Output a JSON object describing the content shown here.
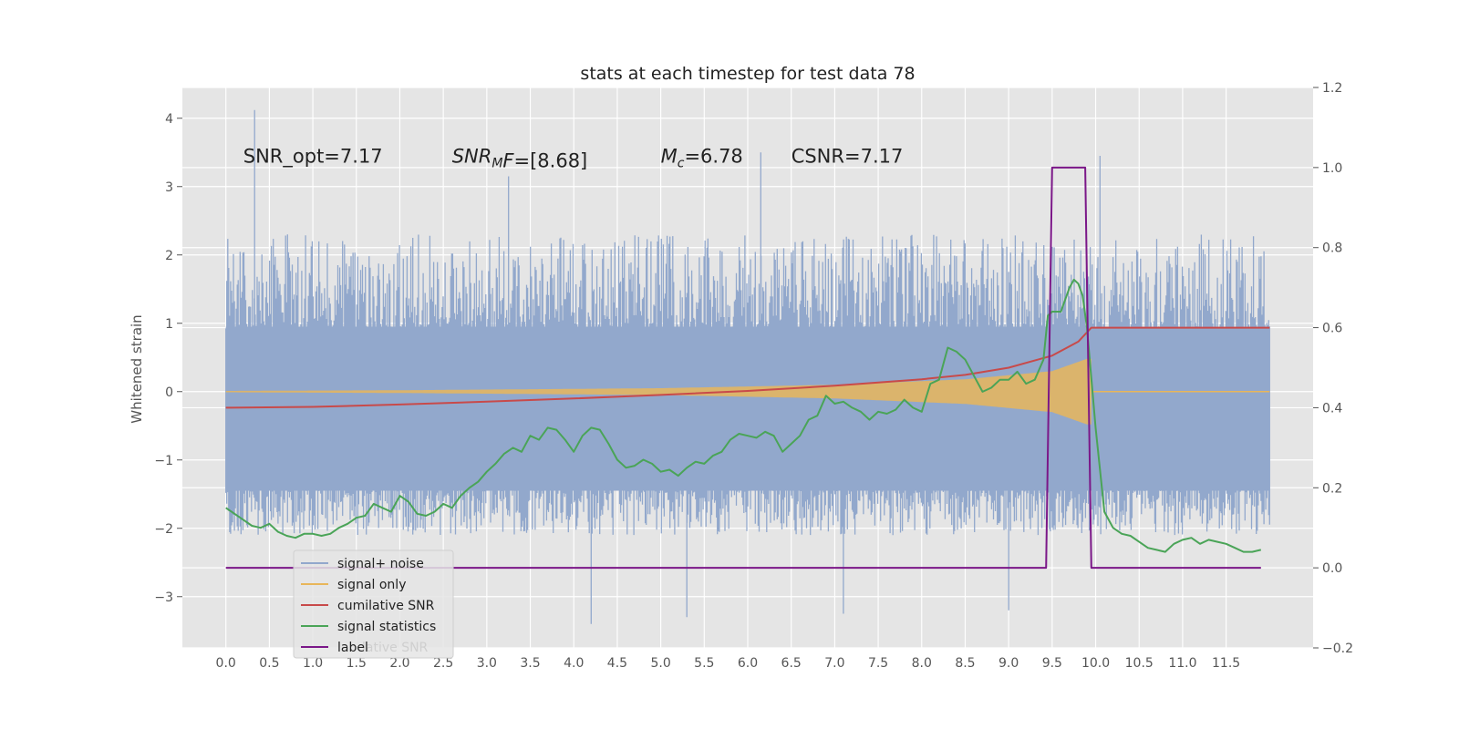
{
  "chart_data": {
    "type": "line",
    "title": "stats at each timestep for test data 78",
    "xlabel": "",
    "ylabel": "Whitened strain",
    "ylabel_right": "",
    "xlim": [
      -0.5,
      12.5
    ],
    "ylim": [
      -3.75,
      4.45
    ],
    "ylim_right": [
      -0.2,
      1.2
    ],
    "grid": true,
    "x_ticks": [
      "0.0",
      "0.5",
      "1.0",
      "1.5",
      "2.0",
      "2.5",
      "3.0",
      "3.5",
      "4.0",
      "4.5",
      "5.0",
      "5.5",
      "6.0",
      "6.5",
      "7.0",
      "7.5",
      "8.0",
      "8.5",
      "9.0",
      "9.5",
      "10.0",
      "10.5",
      "11.0",
      "11.5"
    ],
    "y_ticks": [
      4,
      3,
      2,
      1,
      0,
      -1,
      -2,
      -3
    ],
    "y_tick_labels": [
      "4",
      "3",
      "2",
      "1",
      "0",
      "−1",
      "−2",
      "−3"
    ],
    "y_ticks_right": [
      1.2,
      1.0,
      0.8,
      0.6,
      0.4,
      0.2,
      0.0,
      -0.2
    ],
    "y_tick_labels_right": [
      "1.2",
      "1.0",
      "0.8",
      "0.6",
      "0.4",
      "0.2",
      "0.0",
      "−0.2"
    ],
    "legend_placement": "lower-left",
    "annotations": [
      {
        "text": "SNR_opt=7.17",
        "x": 0.2,
        "y": 3.35
      },
      {
        "text": "SNR",
        "sub": "M",
        "tail": "F=[8.68]",
        "italic": true,
        "x": 2.6,
        "y": 3.35
      },
      {
        "text": "M",
        "sub": "c",
        "tail": "=6.78",
        "italic": true,
        "x": 5.0,
        "y": 3.35
      },
      {
        "text": "CSNR=7.17",
        "x": 6.5,
        "y": 3.35
      }
    ],
    "legend_ghost": "lative SNR",
    "series": [
      {
        "name": "signal+ noise",
        "axis": "left",
        "color": "#92a8cc",
        "style": "noise",
        "x_range": [
          0.0,
          12.0
        ],
        "envelope_upper": 2.3,
        "envelope_lower": -2.1,
        "band": [
          -1.45,
          0.95
        ],
        "peaks": [
          {
            "x": 0.33,
            "y": 4.12
          },
          {
            "x": 6.15,
            "y": 3.5
          },
          {
            "x": 10.05,
            "y": 3.45
          },
          {
            "x": 3.25,
            "y": 3.15
          },
          {
            "x": 4.2,
            "y": -3.4
          },
          {
            "x": 5.3,
            "y": -3.3
          },
          {
            "x": 7.1,
            "y": -3.25
          },
          {
            "x": 9.0,
            "y": -3.2
          }
        ]
      },
      {
        "name": "signal only",
        "axis": "left",
        "color": "#e8b65a",
        "style": "chirp",
        "x_range": [
          0.0,
          9.95
        ],
        "amplitude": [
          [
            0.0,
            0.01
          ],
          [
            2.0,
            0.02
          ],
          [
            5.0,
            0.05
          ],
          [
            7.0,
            0.1
          ],
          [
            8.5,
            0.18
          ],
          [
            9.5,
            0.3
          ],
          [
            9.9,
            0.48
          ]
        ]
      },
      {
        "name": "cumilative SNR",
        "axis": "right",
        "color": "#c84a4a",
        "x": [
          0.0,
          1.0,
          2.0,
          3.0,
          4.0,
          5.0,
          6.0,
          7.0,
          8.0,
          8.5,
          9.0,
          9.5,
          9.8,
          9.95,
          10.5,
          12.0
        ],
        "values": [
          0.4,
          0.402,
          0.408,
          0.415,
          0.423,
          0.432,
          0.442,
          0.455,
          0.471,
          0.482,
          0.5,
          0.53,
          0.565,
          0.6,
          0.6,
          0.6
        ]
      },
      {
        "name": "signal statistics",
        "axis": "right",
        "color": "#4aa457",
        "x": [
          0.0,
          0.1,
          0.2,
          0.3,
          0.4,
          0.5,
          0.6,
          0.7,
          0.8,
          0.9,
          1.0,
          1.1,
          1.2,
          1.3,
          1.4,
          1.5,
          1.6,
          1.7,
          1.8,
          1.9,
          2.0,
          2.1,
          2.2,
          2.3,
          2.4,
          2.5,
          2.6,
          2.7,
          2.8,
          2.9,
          3.0,
          3.1,
          3.2,
          3.3,
          3.4,
          3.5,
          3.6,
          3.7,
          3.8,
          3.9,
          4.0,
          4.1,
          4.2,
          4.3,
          4.4,
          4.5,
          4.6,
          4.7,
          4.8,
          4.9,
          5.0,
          5.1,
          5.2,
          5.3,
          5.4,
          5.5,
          5.6,
          5.7,
          5.8,
          5.9,
          6.0,
          6.1,
          6.2,
          6.3,
          6.4,
          6.5,
          6.6,
          6.7,
          6.8,
          6.9,
          7.0,
          7.1,
          7.2,
          7.3,
          7.4,
          7.5,
          7.6,
          7.7,
          7.8,
          7.9,
          8.0,
          8.1,
          8.2,
          8.3,
          8.4,
          8.5,
          8.6,
          8.7,
          8.8,
          8.9,
          9.0,
          9.1,
          9.2,
          9.3,
          9.4,
          9.45,
          9.5,
          9.6,
          9.7,
          9.75,
          9.8,
          9.85,
          9.9,
          10.0,
          10.1,
          10.2,
          10.3,
          10.4,
          10.5,
          10.6,
          10.7,
          10.8,
          10.9,
          11.0,
          11.1,
          11.2,
          11.3,
          11.4,
          11.5,
          11.6,
          11.7,
          11.8,
          11.9
        ],
        "values": [
          0.15,
          0.135,
          0.12,
          0.105,
          0.1,
          0.11,
          0.09,
          0.08,
          0.075,
          0.085,
          0.085,
          0.08,
          0.085,
          0.1,
          0.11,
          0.125,
          0.13,
          0.16,
          0.15,
          0.14,
          0.18,
          0.165,
          0.135,
          0.13,
          0.14,
          0.16,
          0.15,
          0.18,
          0.2,
          0.215,
          0.24,
          0.26,
          0.285,
          0.3,
          0.29,
          0.33,
          0.32,
          0.35,
          0.345,
          0.32,
          0.29,
          0.33,
          0.35,
          0.345,
          0.31,
          0.27,
          0.25,
          0.255,
          0.27,
          0.26,
          0.24,
          0.245,
          0.23,
          0.25,
          0.265,
          0.26,
          0.28,
          0.29,
          0.32,
          0.335,
          0.33,
          0.325,
          0.34,
          0.33,
          0.29,
          0.31,
          0.33,
          0.37,
          0.38,
          0.43,
          0.41,
          0.415,
          0.4,
          0.39,
          0.37,
          0.39,
          0.385,
          0.395,
          0.42,
          0.4,
          0.39,
          0.46,
          0.47,
          0.55,
          0.54,
          0.52,
          0.48,
          0.44,
          0.45,
          0.47,
          0.47,
          0.49,
          0.46,
          0.47,
          0.52,
          0.63,
          0.64,
          0.64,
          0.7,
          0.72,
          0.71,
          0.68,
          0.6,
          0.35,
          0.14,
          0.1,
          0.085,
          0.08,
          0.065,
          0.05,
          0.045,
          0.04,
          0.06,
          0.07,
          0.075,
          0.06,
          0.07,
          0.065,
          0.06,
          0.05,
          0.04,
          0.04,
          0.045
        ]
      },
      {
        "name": "label",
        "axis": "right",
        "color": "#7b1788",
        "x": [
          0.0,
          9.43,
          9.5,
          9.88,
          9.95,
          11.9
        ],
        "values": [
          0.0,
          0.0,
          1.0,
          1.0,
          0.0,
          0.0
        ]
      }
    ]
  }
}
